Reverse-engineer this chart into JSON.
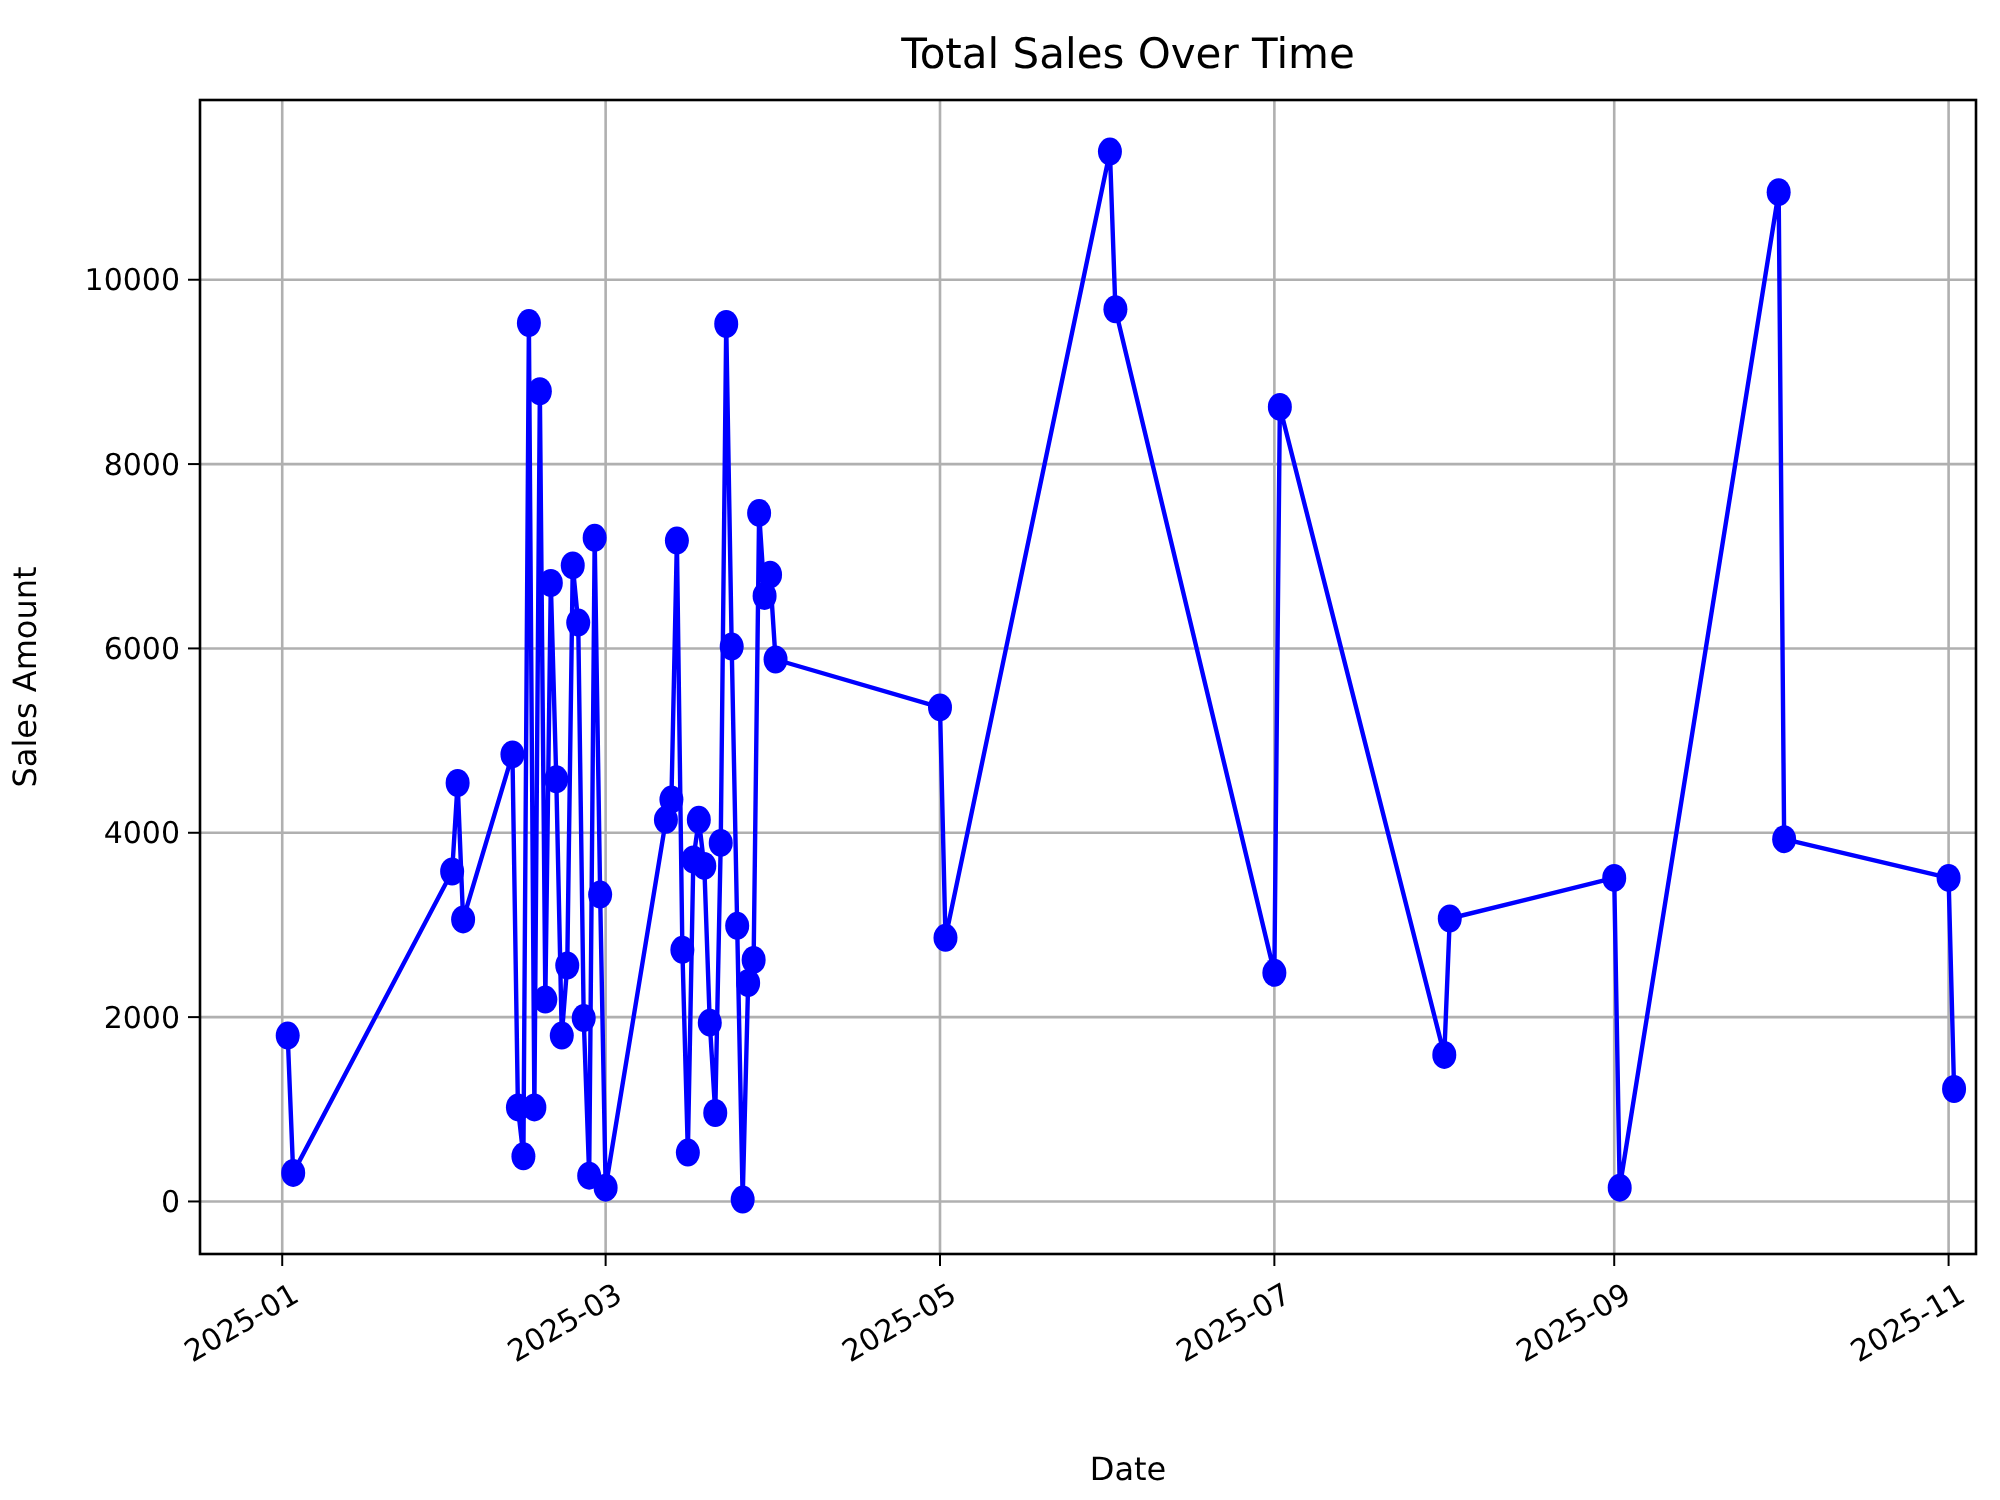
{
  "chart_data": {
    "type": "line",
    "title": "Total Sales Over Time",
    "xlabel": "Date",
    "ylabel": "Sales Amount",
    "x": [
      "2025-01-02",
      "2025-01-03",
      "2025-02-01",
      "2025-02-02",
      "2025-02-03",
      "2025-02-12",
      "2025-02-13",
      "2025-02-14",
      "2025-02-15",
      "2025-02-16",
      "2025-02-17",
      "2025-02-18",
      "2025-02-19",
      "2025-02-20",
      "2025-02-21",
      "2025-02-22",
      "2025-02-23",
      "2025-02-24",
      "2025-02-25",
      "2025-02-26",
      "2025-02-27",
      "2025-02-28",
      "2025-03-01",
      "2025-03-12",
      "2025-03-13",
      "2025-03-14",
      "2025-03-15",
      "2025-03-16",
      "2025-03-17",
      "2025-03-18",
      "2025-03-19",
      "2025-03-20",
      "2025-03-21",
      "2025-03-22",
      "2025-03-23",
      "2025-03-24",
      "2025-03-25",
      "2025-03-26",
      "2025-03-27",
      "2025-03-28",
      "2025-03-29",
      "2025-03-30",
      "2025-03-31",
      "2025-04-01",
      "2025-05-01",
      "2025-05-02",
      "2025-06-01",
      "2025-06-02",
      "2025-07-01",
      "2025-07-02",
      "2025-08-01",
      "2025-08-02",
      "2025-09-01",
      "2025-09-02",
      "2025-10-01",
      "2025-10-02",
      "2025-11-01",
      "2025-11-02"
    ],
    "series": [
      {
        "color": "#0000ff",
        "values": [
          1800,
          310,
          3580,
          4540,
          3060,
          4850,
          1020,
          490,
          9530,
          1020,
          8790,
          2190,
          6710,
          4580,
          1800,
          2560,
          6900,
          6280,
          1990,
          280,
          7200,
          3330,
          150,
          4140,
          4360,
          7170,
          2730,
          530,
          3710,
          4140,
          3640,
          1940,
          960,
          3890,
          9520,
          6020,
          2990,
          20,
          2370,
          2620,
          7470,
          6570,
          6800,
          5880,
          5360,
          2860,
          11390,
          9680,
          2480,
          8620,
          1590,
          3070,
          3510,
          150,
          10950,
          3930,
          3510,
          1220
        ]
      }
    ],
    "xlim": [
      "2024-12-17",
      "2025-11-06"
    ],
    "ylim": [
      -570,
      11950
    ],
    "xticks": [
      {
        "value": "2025-01-01",
        "label": "2025-01"
      },
      {
        "value": "2025-03-01",
        "label": "2025-03"
      },
      {
        "value": "2025-05-01",
        "label": "2025-05"
      },
      {
        "value": "2025-07-01",
        "label": "2025-07"
      },
      {
        "value": "2025-09-01",
        "label": "2025-09"
      },
      {
        "value": "2025-11-01",
        "label": "2025-11"
      }
    ],
    "yticks": [
      0,
      2000,
      4000,
      6000,
      8000,
      10000
    ],
    "grid": true,
    "marker": "circle",
    "line_style": "solid"
  }
}
